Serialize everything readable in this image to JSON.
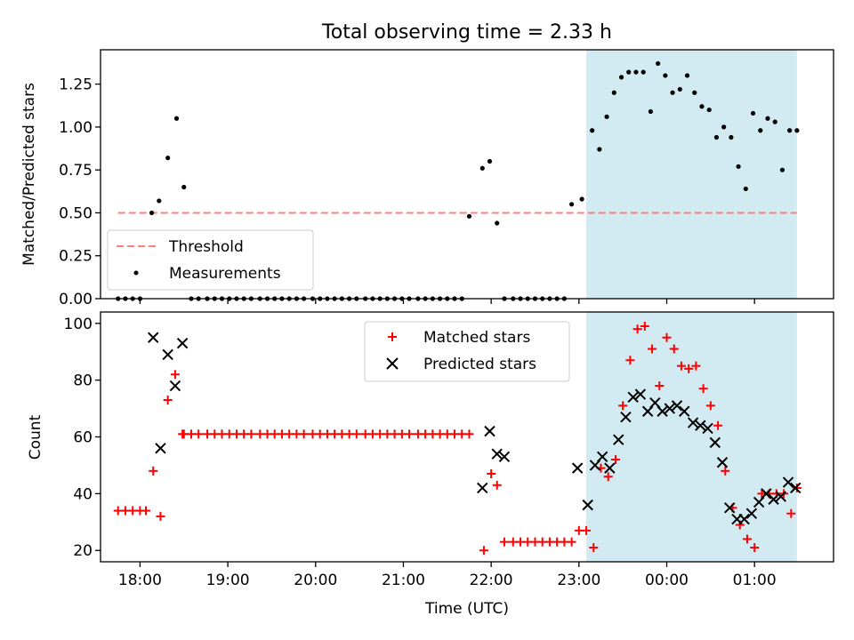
{
  "title": "Total observing time = 2.33 h",
  "xlabel": "Time (UTC)",
  "x_tick_labels": [
    "18:00",
    "19:00",
    "20:00",
    "21:00",
    "22:00",
    "23:00",
    "00:00",
    "01:00"
  ],
  "colors": {
    "shade": "#add8e6",
    "threshold": "#ff7f7f",
    "measurements": "#000000",
    "matched": "#ff0000",
    "predicted": "#000000"
  },
  "chart_data": [
    {
      "type": "scatter",
      "ylabel": "Matched/Predicted stars",
      "ylim": [
        0,
        1.45
      ],
      "yticks": [
        0.0,
        0.25,
        0.5,
        0.75,
        1.0,
        1.25
      ],
      "ytick_labels": [
        "0.00",
        "0.25",
        "0.50",
        "0.75",
        "1.00",
        "1.25"
      ],
      "xlim": [
        "17:33",
        "01:54"
      ],
      "shaded_interval": [
        "23:05",
        "01:29"
      ],
      "threshold": 0.5,
      "threshold_range": [
        "17:45",
        "01:29"
      ],
      "legend": {
        "position": "lower-left",
        "entries": [
          "Threshold",
          "Measurements"
        ]
      },
      "series": [
        {
          "name": "Measurements",
          "x": [
            "17:45",
            "17:50",
            "17:55",
            "18:00",
            "18:08",
            "18:13",
            "18:19",
            "18:25",
            "18:30",
            "18:35",
            "18:40",
            "18:46",
            "18:51",
            "18:56",
            "19:01",
            "19:06",
            "19:11",
            "19:16",
            "19:22",
            "19:27",
            "19:32",
            "19:37",
            "19:42",
            "19:47",
            "19:52",
            "19:58",
            "20:03",
            "20:08",
            "20:13",
            "20:18",
            "20:23",
            "20:28",
            "20:34",
            "20:39",
            "20:44",
            "20:49",
            "20:54",
            "20:59",
            "21:04",
            "21:10",
            "21:15",
            "21:20",
            "21:25",
            "21:30",
            "21:35",
            "21:40",
            "21:45",
            "21:54",
            "21:59",
            "22:04",
            "22:09",
            "22:15",
            "22:20",
            "22:25",
            "22:30",
            "22:35",
            "22:40",
            "22:45",
            "22:50",
            "22:55",
            "23:02",
            "23:09",
            "23:14",
            "23:19",
            "23:24",
            "23:29",
            "23:34",
            "23:39",
            "23:44",
            "23:49",
            "23:54",
            "23:59",
            "00:04",
            "00:09",
            "00:14",
            "00:19",
            "00:24",
            "00:29",
            "00:34",
            "00:39",
            "00:44",
            "00:49",
            "00:54",
            "00:59",
            "01:04",
            "01:09",
            "01:14",
            "01:19",
            "01:24",
            "01:29"
          ],
          "y": [
            0,
            0,
            0,
            0,
            0.5,
            0.57,
            0.82,
            1.05,
            0.65,
            0,
            0,
            0,
            0,
            0,
            0,
            0,
            0,
            0,
            0,
            0,
            0,
            0,
            0,
            0,
            0,
            0,
            0,
            0,
            0,
            0,
            0,
            0,
            0,
            0,
            0,
            0,
            0,
            0,
            0,
            0,
            0,
            0,
            0,
            0,
            0,
            0,
            0.48,
            0.76,
            0.8,
            0.44,
            0,
            0,
            0,
            0,
            0,
            0,
            0,
            0,
            0,
            0.55,
            0.58,
            0.98,
            0.87,
            1.06,
            1.2,
            1.29,
            1.32,
            1.32,
            1.32,
            1.09,
            1.37,
            1.3,
            1.2,
            1.22,
            1.3,
            1.2,
            1.12,
            1.1,
            0.94,
            1.0,
            0.94,
            0.77,
            0.64,
            1.08,
            0.98,
            1.05,
            1.03,
            0.75,
            0.98,
            0.98
          ]
        }
      ]
    },
    {
      "type": "scatter",
      "ylabel": "Count",
      "ylim": [
        16,
        104
      ],
      "yticks": [
        20,
        40,
        60,
        80,
        100
      ],
      "ytick_labels": [
        "20",
        "40",
        "60",
        "80",
        "100"
      ],
      "xlim": [
        "17:33",
        "01:54"
      ],
      "shaded_interval": [
        "23:05",
        "01:29"
      ],
      "legend": {
        "position": "upper-center",
        "entries": [
          "Matched stars",
          "Predicted stars"
        ]
      },
      "series": [
        {
          "name": "Matched stars",
          "marker": "+",
          "x": [
            "17:45",
            "17:50",
            "17:55",
            "18:00",
            "18:04",
            "18:09",
            "18:14",
            "18:19",
            "18:24",
            "18:29",
            "18:30",
            "18:35",
            "18:40",
            "18:46",
            "18:51",
            "18:56",
            "19:01",
            "19:06",
            "19:11",
            "19:16",
            "19:22",
            "19:27",
            "19:32",
            "19:37",
            "19:42",
            "19:47",
            "19:52",
            "19:58",
            "20:03",
            "20:08",
            "20:13",
            "20:18",
            "20:23",
            "20:28",
            "20:34",
            "20:39",
            "20:44",
            "20:49",
            "20:54",
            "20:59",
            "21:04",
            "21:10",
            "21:15",
            "21:20",
            "21:25",
            "21:30",
            "21:35",
            "21:40",
            "21:45",
            "21:55",
            "22:00",
            "22:04",
            "22:09",
            "22:15",
            "22:20",
            "22:25",
            "22:30",
            "22:35",
            "22:40",
            "22:45",
            "22:50",
            "22:55",
            "23:00",
            "23:05",
            "23:10",
            "23:15",
            "23:20",
            "23:25",
            "23:30",
            "23:35",
            "23:40",
            "23:45",
            "23:50",
            "23:55",
            "00:00",
            "00:05",
            "00:10",
            "00:15",
            "00:20",
            "00:25",
            "00:30",
            "00:35",
            "00:40",
            "00:45",
            "00:50",
            "00:55",
            "01:00",
            "01:05",
            "01:10",
            "01:15",
            "01:20",
            "01:25",
            "01:29"
          ],
          "y": [
            34,
            34,
            34,
            34,
            34,
            48,
            32,
            73,
            82,
            61,
            61,
            61,
            61,
            61,
            61,
            61,
            61,
            61,
            61,
            61,
            61,
            61,
            61,
            61,
            61,
            61,
            61,
            61,
            61,
            61,
            61,
            61,
            61,
            61,
            61,
            61,
            61,
            61,
            61,
            61,
            61,
            61,
            61,
            61,
            61,
            61,
            61,
            61,
            61,
            20,
            47,
            43,
            23,
            23,
            23,
            23,
            23,
            23,
            23,
            23,
            23,
            23,
            27,
            27,
            21,
            49,
            46,
            52,
            71,
            87,
            98,
            99,
            91,
            78,
            95,
            91,
            85,
            84,
            85,
            77,
            71,
            64,
            48,
            35,
            29,
            24,
            21,
            40,
            40,
            40,
            40,
            33,
            42
          ]
        },
        {
          "name": "Predicted stars",
          "marker": "x",
          "x": [
            "18:09",
            "18:14",
            "18:19",
            "18:24",
            "18:29",
            "21:54",
            "21:59",
            "22:04",
            "22:09",
            "22:59",
            "23:06",
            "23:11",
            "23:16",
            "23:21",
            "23:27",
            "23:32",
            "23:37",
            "23:42",
            "23:47",
            "23:52",
            "23:57",
            "00:02",
            "00:07",
            "00:12",
            "00:18",
            "00:23",
            "00:28",
            "00:33",
            "00:38",
            "00:43",
            "00:48",
            "00:53",
            "00:58",
            "01:03",
            "01:08",
            "01:13",
            "01:18",
            "01:23",
            "01:28"
          ],
          "y": [
            95,
            56,
            89,
            78,
            93,
            42,
            62,
            54,
            53,
            49,
            36,
            50,
            53,
            49,
            59,
            67,
            74,
            75,
            69,
            72,
            69,
            70,
            71,
            69,
            65,
            64,
            63,
            58,
            51,
            35,
            31,
            31,
            33,
            37,
            40,
            38,
            39,
            44,
            42
          ]
        }
      ]
    }
  ]
}
